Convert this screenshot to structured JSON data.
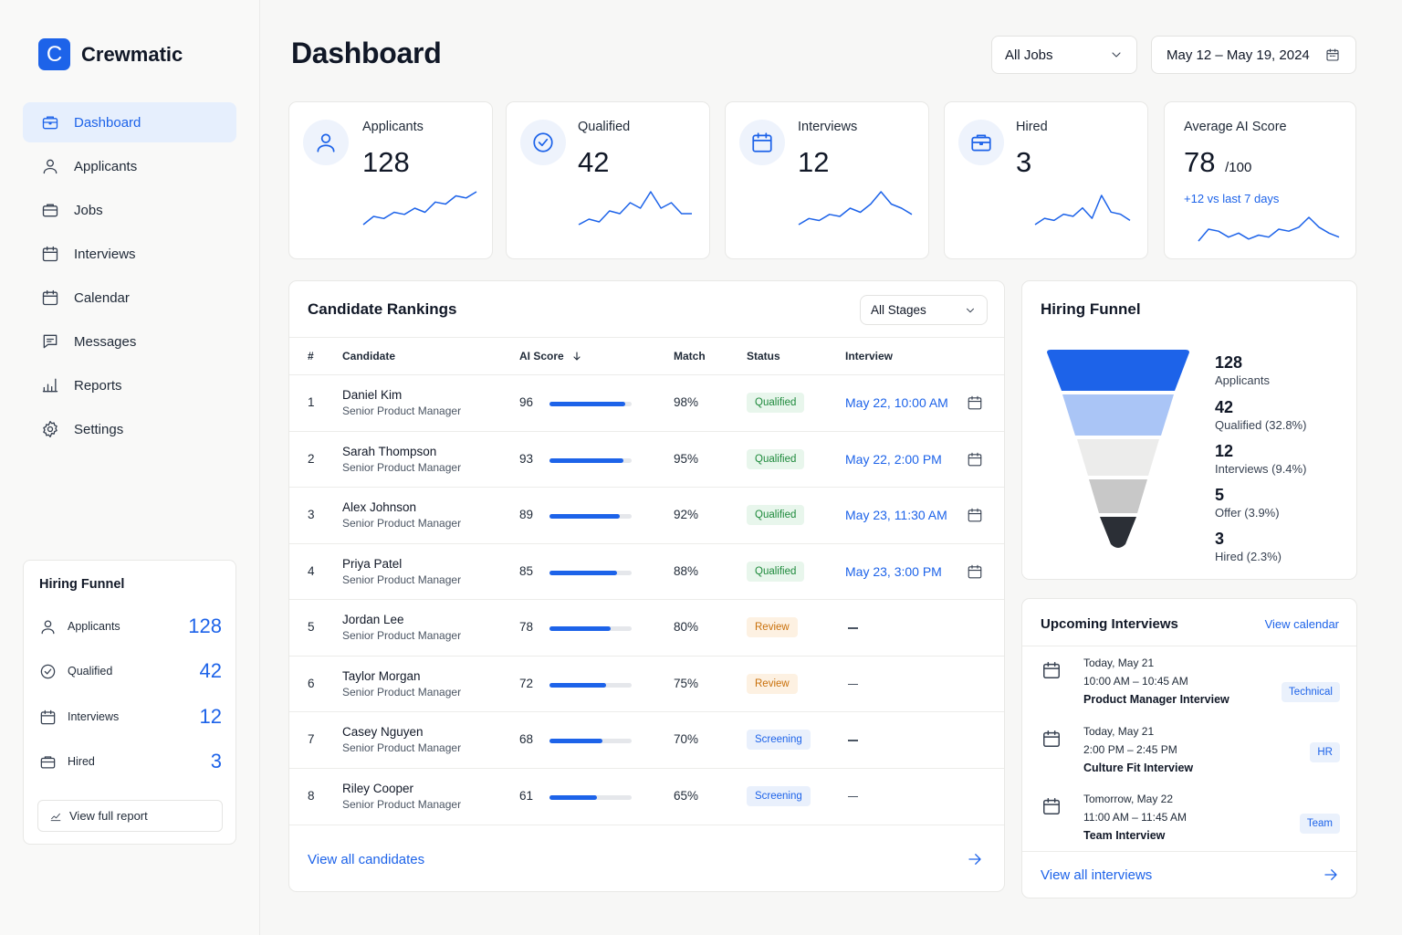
{
  "brand": {
    "logo_letter": "C",
    "name": "Crewmatic",
    "accent": "#1d63e9"
  },
  "sidebar": {
    "items": [
      {
        "label": "Dashboard",
        "icon": "briefcase-icon",
        "active": true
      },
      {
        "label": "Applicants",
        "icon": "user-icon"
      },
      {
        "label": "Jobs",
        "icon": "briefcase-icon"
      },
      {
        "label": "Interviews",
        "icon": "calendar-icon"
      },
      {
        "label": "Calendar",
        "icon": "calendar-icon"
      },
      {
        "label": "Messages",
        "icon": "message-icon"
      },
      {
        "label": "Reports",
        "icon": "bar-chart-icon"
      },
      {
        "label": "Settings",
        "icon": "gear-icon"
      }
    ],
    "funnel": {
      "title": "Hiring Funnel",
      "rows": [
        {
          "label": "Applicants",
          "value": "128",
          "icon": "user-icon"
        },
        {
          "label": "Qualified",
          "value": "42",
          "icon": "check-circle-icon"
        },
        {
          "label": "Interviews",
          "value": "12",
          "icon": "calendar-icon"
        },
        {
          "label": "Hired",
          "value": "3",
          "icon": "briefcase-icon"
        }
      ],
      "report_button": "View full report"
    }
  },
  "header": {
    "title": "Dashboard",
    "job_filter": "All Jobs",
    "date_range": "May 12 – May 19, 2024"
  },
  "stats": [
    {
      "label": "Applicants",
      "value": "128",
      "icon": "user-icon",
      "spark": [
        2,
        4,
        3.5,
        5,
        4.5,
        6,
        5,
        7.5,
        7,
        9,
        8.5,
        10
      ]
    },
    {
      "label": "Qualified",
      "value": "42",
      "icon": "check-circle-icon",
      "spark": [
        3,
        4,
        3.5,
        5.5,
        5,
        7,
        6,
        9,
        6,
        7,
        5,
        5
      ]
    },
    {
      "label": "Interviews",
      "value": "12",
      "icon": "calendar-icon",
      "spark": [
        2,
        3.5,
        3,
        4.5,
        4,
        6,
        5,
        7,
        10,
        7,
        6,
        4.5
      ]
    },
    {
      "label": "Hired",
      "value": "3",
      "icon": "briefcase-icon",
      "spark": [
        3,
        4.5,
        4,
        5.5,
        5,
        7,
        4.5,
        10,
        6,
        5.5,
        4
      ]
    },
    {
      "label": "Average AI Score",
      "value": "78",
      "suffix": "/100",
      "delta": "+12 vs last 7 days",
      "spark": [
        4,
        7,
        6.5,
        5,
        6,
        4.5,
        5.5,
        5,
        7,
        6.5,
        7.5,
        10,
        7.5,
        6,
        5
      ]
    }
  ],
  "rankings": {
    "title": "Candidate Rankings",
    "stage_filter": "All Stages",
    "columns": {
      "num": "#",
      "candidate": "Candidate",
      "ai_score": "AI Score",
      "match": "Match",
      "status": "Status",
      "interview": "Interview"
    },
    "rows": [
      {
        "num": "1",
        "name": "Daniel Kim",
        "role": "Senior Product Manager",
        "score": "96",
        "match": "98%",
        "status": "Qualified",
        "interview": "May 22, 10:00 AM"
      },
      {
        "num": "2",
        "name": "Sarah Thompson",
        "role": "Senior Product Manager",
        "score": "93",
        "match": "95%",
        "status": "Qualified",
        "interview": "May 22, 2:00 PM"
      },
      {
        "num": "3",
        "name": "Alex Johnson",
        "role": "Senior Product Manager",
        "score": "89",
        "match": "92%",
        "status": "Qualified",
        "interview": "May 23, 11:30 AM"
      },
      {
        "num": "4",
        "name": "Priya Patel",
        "role": "Senior Product Manager",
        "score": "85",
        "match": "88%",
        "status": "Qualified",
        "interview": "May 23, 3:00 PM"
      },
      {
        "num": "5",
        "name": "Jordan Lee",
        "role": "Senior Product Manager",
        "score": "78",
        "match": "80%",
        "status": "Review",
        "interview": "—"
      },
      {
        "num": "6",
        "name": "Taylor Morgan",
        "role": "Senior Product Manager",
        "score": "72",
        "match": "75%",
        "status": "Review",
        "interview": "—"
      },
      {
        "num": "7",
        "name": "Casey Nguyen",
        "role": "Senior Product Manager",
        "score": "68",
        "match": "70%",
        "status": "Screening",
        "interview": "—"
      },
      {
        "num": "8",
        "name": "Riley Cooper",
        "role": "Senior Product Manager",
        "score": "61",
        "match": "65%",
        "status": "Screening",
        "interview": "—"
      }
    ],
    "footer_link": "View all candidates"
  },
  "status_colors": {
    "Qualified": {
      "bg": "#e8f6ec",
      "fg": "#1e8a3c"
    },
    "Review": {
      "bg": "#fdf1e2",
      "fg": "#c9700a"
    },
    "Screening": {
      "bg": "#e9f0fc",
      "fg": "#1d63e9"
    }
  },
  "funnel": {
    "title": "Hiring Funnel",
    "stages": [
      {
        "value": "128",
        "label": "Applicants",
        "color": "#1d63e9"
      },
      {
        "value": "42",
        "label": "Qualified (32.8%)",
        "color": "#aac5f6"
      },
      {
        "value": "12",
        "label": "Interviews (9.4%)",
        "color": "#ececeb"
      },
      {
        "value": "5",
        "label": "Offer (3.9%)",
        "color": "#c8c8c8"
      },
      {
        "value": "3",
        "label": "Hired (2.3%)",
        "color": "#2b2f36"
      }
    ]
  },
  "upcoming": {
    "title": "Upcoming Interviews",
    "calendar_link": "View calendar",
    "items": [
      {
        "day": "Today, May 21",
        "time": "10:00 AM – 10:45 AM",
        "name": "Product Manager Interview",
        "tag": "Technical"
      },
      {
        "day": "Today, May 21",
        "time": "2:00 PM – 2:45 PM",
        "name": "Culture Fit Interview",
        "tag": "HR"
      },
      {
        "day": "Tomorrow, May 22",
        "time": "11:00 AM – 11:45 AM",
        "name": "Team Interview",
        "tag": "Team"
      }
    ],
    "footer_link": "View all interviews"
  }
}
